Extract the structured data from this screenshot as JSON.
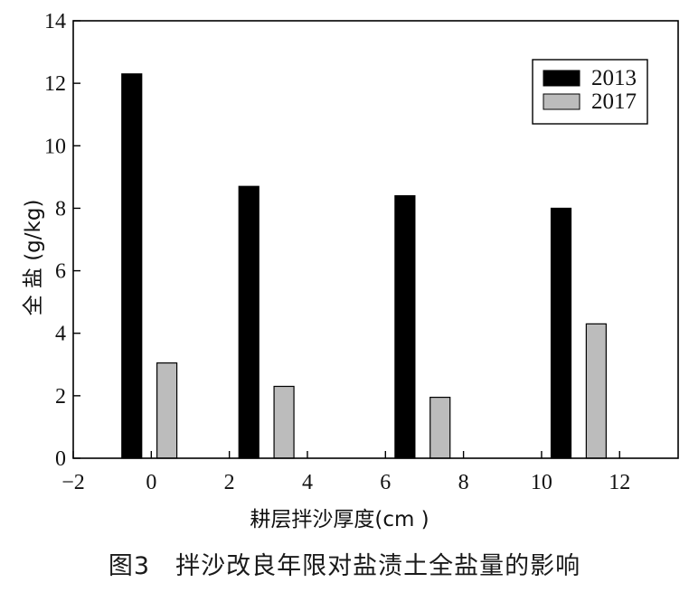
{
  "caption": "图3　拌沙改良年限对盐渍土全盐量的影响",
  "chart_data": {
    "type": "bar",
    "xlabel": "耕层拌沙厚度(cm )",
    "ylabel": "全 盐 (g/kg)",
    "xlim": [
      -2,
      13.5
    ],
    "ylim": [
      0,
      14
    ],
    "xticks": [
      -2,
      0,
      2,
      4,
      6,
      8,
      10,
      12
    ],
    "xtick_labels": [
      "−2",
      "0",
      "2",
      "4",
      "6",
      "8",
      "10",
      "12"
    ],
    "yticks": [
      0,
      2,
      4,
      6,
      8,
      10,
      12,
      14
    ],
    "ytick_labels": [
      "0",
      "2",
      "4",
      "6",
      "8",
      "10",
      "12",
      "14"
    ],
    "categories": [
      "0",
      "3",
      "7",
      "11"
    ],
    "series": [
      {
        "name": "2013",
        "color": "#000000",
        "x": [
          -0.5,
          2.5,
          6.5,
          10.5
        ],
        "values": [
          12.3,
          8.7,
          8.4,
          8.0
        ]
      },
      {
        "name": "2017",
        "color": "#bcbcbc",
        "x": [
          0.4,
          3.4,
          7.4,
          11.4
        ],
        "values": [
          3.05,
          2.3,
          1.95,
          4.3
        ]
      }
    ],
    "legend": {
      "position": "top-right"
    },
    "grid": false
  }
}
